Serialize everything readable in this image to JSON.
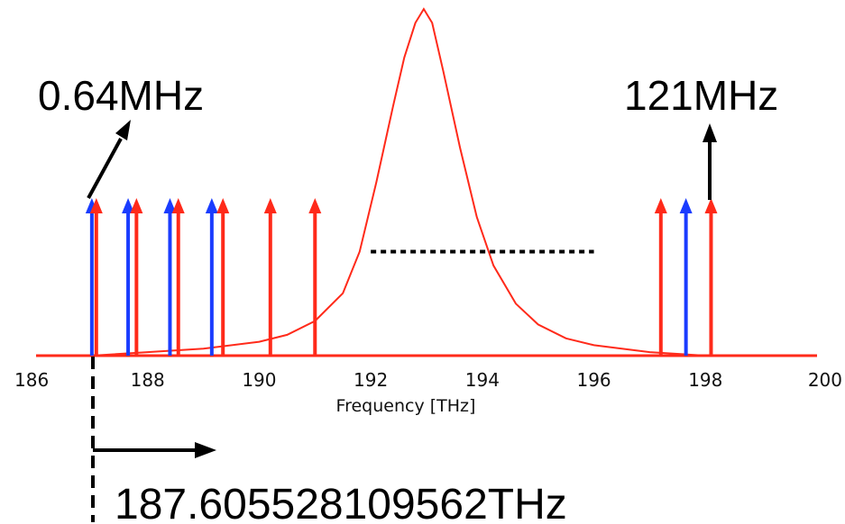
{
  "chart_data": {
    "type": "line",
    "xlabel": "Frequency [THz]",
    "xlim": [
      186,
      200
    ],
    "x_ticks": [
      "186",
      "188",
      "190",
      "192",
      "194",
      "196",
      "198",
      "200"
    ],
    "gain_curve": {
      "x": [
        186.2,
        187.0,
        188.0,
        189.0,
        190.0,
        190.5,
        191.0,
        191.5,
        191.8,
        192.1,
        192.4,
        192.6,
        192.8,
        192.95,
        193.1,
        193.3,
        193.6,
        193.9,
        194.2,
        194.6,
        195.0,
        195.5,
        196.0,
        196.5,
        197.0,
        198.0,
        199.0,
        199.8
      ],
      "y": [
        0.0,
        0.0,
        0.01,
        0.02,
        0.04,
        0.06,
        0.1,
        0.18,
        0.3,
        0.5,
        0.72,
        0.86,
        0.96,
        1.0,
        0.96,
        0.82,
        0.6,
        0.4,
        0.26,
        0.15,
        0.09,
        0.05,
        0.03,
        0.02,
        0.01,
        0.0,
        0.0,
        0.0
      ],
      "color": "#ff2a1a"
    },
    "comb_lines": [
      {
        "x": 187.0,
        "color": "#1a3cff"
      },
      {
        "x": 187.08,
        "color": "#ff2a1a"
      },
      {
        "x": 187.65,
        "color": "#1a3cff"
      },
      {
        "x": 187.8,
        "color": "#ff2a1a"
      },
      {
        "x": 188.4,
        "color": "#1a3cff"
      },
      {
        "x": 188.55,
        "color": "#ff2a1a"
      },
      {
        "x": 189.15,
        "color": "#1a3cff"
      },
      {
        "x": 189.35,
        "color": "#ff2a1a"
      },
      {
        "x": 190.2,
        "color": "#ff2a1a"
      },
      {
        "x": 191.0,
        "color": "#ff2a1a"
      },
      {
        "x": 197.2,
        "color": "#ff2a1a"
      },
      {
        "x": 197.65,
        "color": "#1a3cff"
      },
      {
        "x": 198.1,
        "color": "#ff2a1a"
      }
    ],
    "half_max_line": {
      "x_start": 192.0,
      "x_end": 196.0,
      "level": 0.3
    }
  },
  "annotations": {
    "offset_label": "0.64MHz",
    "rep_rate_label": "121MHz",
    "start_freq_label": "187.605528109562THz"
  },
  "colors": {
    "blue": "#1a3cff",
    "red": "#ff2a1a",
    "black": "#000000"
  }
}
